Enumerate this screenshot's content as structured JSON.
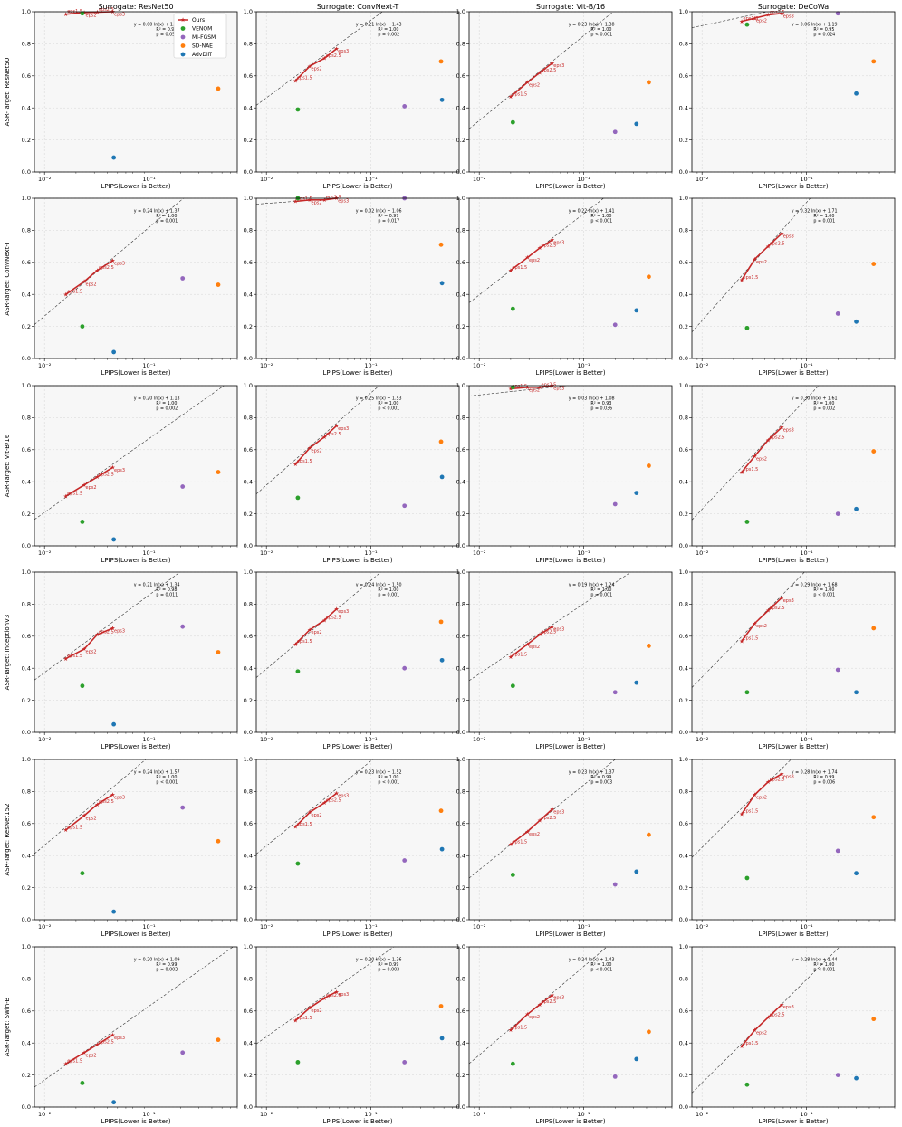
{
  "chart_data": {
    "type": "scatter",
    "xscale": "log",
    "xlabel": "LPIPS(Lower is Better)",
    "ylim": [
      0,
      1
    ],
    "yticks": [
      "0.0",
      "0.2",
      "0.4",
      "0.6",
      "0.8",
      "1.0"
    ],
    "xtick_labels": [
      "10⁻²",
      "10⁻¹"
    ],
    "grid": true,
    "legend": {
      "position": "top-right",
      "entries": [
        "Ours",
        "VENOM",
        "MI-FGSM",
        "SD-NAE",
        "AdvDiff"
      ]
    },
    "colors": {
      "Ours": "#c62828",
      "VENOM": "#2ca02c",
      "MI-FGSM": "#9467bd",
      "SD-NAE": "#ff7f0e",
      "AdvDiff": "#1f77b4",
      "fit": "#333333"
    },
    "eps_labels": [
      "eps1.5",
      "eps2",
      "eps2.5",
      "eps3"
    ],
    "columns": [
      "Surrogate: ResNet50",
      "Surrogate: ConvNext-T",
      "Surrogate: Vit-B/16",
      "Surrogate: DeCoWa"
    ],
    "rows": [
      "ASR-Target: ResNet50",
      "ASR-Target: ConvNext-T",
      "ASR-Target: Vit-B/16",
      "ASR-Target: InceptionV3",
      "ASR-Target: ResNet152",
      "ASR-Target: Swin-B"
    ],
    "xlims": [
      [
        0.008,
        0.7
      ],
      [
        0.008,
        0.7
      ],
      [
        0.008,
        0.7
      ],
      [
        0.008,
        0.7
      ]
    ],
    "ours_x": [
      [
        0.016,
        0.024,
        0.032,
        0.045
      ],
      [
        0.019,
        0.026,
        0.036,
        0.047
      ],
      [
        0.02,
        0.029,
        0.038,
        0.05
      ],
      [
        0.024,
        0.032,
        0.043,
        0.058
      ]
    ],
    "baseline_x": [
      {
        "VENOM": 0.023,
        "MI-FGSM": 0.21,
        "SD-NAE": 0.46,
        "AdvDiff": 0.046
      },
      {
        "VENOM": 0.02,
        "MI-FGSM": 0.21,
        "SD-NAE": 0.47,
        "AdvDiff": 0.48
      },
      {
        "VENOM": 0.021,
        "MI-FGSM": 0.2,
        "SD-NAE": 0.42,
        "AdvDiff": 0.32
      },
      {
        "VENOM": 0.027,
        "MI-FGSM": 0.2,
        "SD-NAE": 0.44,
        "AdvDiff": 0.3
      }
    ],
    "panels": [
      [
        {
          "ours": [
            0.985,
            0.995,
            0.998,
            1.0
          ],
          "baselines": {
            "VENOM": 0.99,
            "MI-FGSM": 0.97,
            "SD-NAE": 0.52,
            "AdvDiff": 0.09
          },
          "fit": [
            "y = 0.00 ln(x) + 1.01",
            "R² = 0.90",
            "p = 0.051"
          ],
          "fit_coef": [
            0.0,
            1.01
          ]
        },
        {
          "ours": [
            0.57,
            0.66,
            0.71,
            0.77
          ],
          "baselines": {
            "VENOM": 0.39,
            "MI-FGSM": 0.41,
            "SD-NAE": 0.69,
            "AdvDiff": 0.45
          },
          "fit": [
            "y = 0.21 ln(x) + 1.43",
            "R² = 1.00",
            "p = 0.002"
          ],
          "fit_coef": [
            0.21,
            1.43
          ]
        },
        {
          "ours": [
            0.47,
            0.56,
            0.62,
            0.68
          ],
          "baselines": {
            "VENOM": 0.31,
            "MI-FGSM": 0.25,
            "SD-NAE": 0.56,
            "AdvDiff": 0.3
          },
          "fit": [
            "y = 0.23 ln(x) + 1.38",
            "R² = 1.00",
            "p < 0.001"
          ],
          "fit_coef": [
            0.23,
            1.38
          ]
        },
        {
          "ours": [
            0.94,
            0.96,
            0.98,
            0.99
          ],
          "baselines": {
            "VENOM": 0.92,
            "MI-FGSM": 0.99,
            "SD-NAE": 0.69,
            "AdvDiff": 0.49
          },
          "fit": [
            "y = 0.06 ln(x) + 1.19",
            "R² = 0.95",
            "p = 0.024"
          ],
          "fit_coef": [
            0.06,
            1.19
          ]
        }
      ],
      [
        {
          "ours": [
            0.4,
            0.48,
            0.55,
            0.61
          ],
          "baselines": {
            "VENOM": 0.2,
            "MI-FGSM": 0.5,
            "SD-NAE": 0.46,
            "AdvDiff": 0.04
          },
          "fit": [
            "y = 0.24 ln(x) + 1.37",
            "R² = 1.00",
            "p = 0.001"
          ],
          "fit_coef": [
            0.24,
            1.37
          ]
        },
        {
          "ours": [
            0.98,
            0.99,
            0.99,
            1.0
          ],
          "baselines": {
            "VENOM": 1.0,
            "MI-FGSM": 1.0,
            "SD-NAE": 0.71,
            "AdvDiff": 0.47
          },
          "fit": [
            "y = 0.02 ln(x) + 1.06",
            "R² = 0.97",
            "p = 0.017"
          ],
          "fit_coef": [
            0.02,
            1.06
          ]
        },
        {
          "ours": [
            0.55,
            0.63,
            0.69,
            0.74
          ],
          "baselines": {
            "VENOM": 0.31,
            "MI-FGSM": 0.21,
            "SD-NAE": 0.51,
            "AdvDiff": 0.3
          },
          "fit": [
            "y = 0.22 ln(x) + 1.41",
            "R² = 1.00",
            "p < 0.001"
          ],
          "fit_coef": [
            0.22,
            1.41
          ]
        },
        {
          "ours": [
            0.49,
            0.62,
            0.7,
            0.78
          ],
          "baselines": {
            "VENOM": 0.19,
            "MI-FGSM": 0.28,
            "SD-NAE": 0.59,
            "AdvDiff": 0.23
          },
          "fit": [
            "y = 0.32 ln(x) + 1.71",
            "R² = 1.00",
            "p = 0.001"
          ],
          "fit_coef": [
            0.32,
            1.71
          ]
        }
      ],
      [
        {
          "ours": [
            0.31,
            0.38,
            0.43,
            0.49
          ],
          "baselines": {
            "VENOM": 0.15,
            "MI-FGSM": 0.37,
            "SD-NAE": 0.46,
            "AdvDiff": 0.04
          },
          "fit": [
            "y = 0.20 ln(x) + 1.13",
            "R² = 1.00",
            "p = 0.002"
          ],
          "fit_coef": [
            0.2,
            1.13
          ]
        },
        {
          "ours": [
            0.51,
            0.61,
            0.68,
            0.75
          ],
          "baselines": {
            "VENOM": 0.3,
            "MI-FGSM": 0.25,
            "SD-NAE": 0.65,
            "AdvDiff": 0.43
          },
          "fit": [
            "y = 0.25 ln(x) + 1.53",
            "R² = 1.00",
            "p < 0.001"
          ],
          "fit_coef": [
            0.25,
            1.53
          ]
        },
        {
          "ours": [
            0.98,
            0.99,
            0.99,
            1.0
          ],
          "baselines": {
            "VENOM": 0.99,
            "MI-FGSM": 0.26,
            "SD-NAE": 0.5,
            "AdvDiff": 0.33
          },
          "fit": [
            "y = 0.03 ln(x) + 1.08",
            "R² = 0.93",
            "p = 0.036"
          ],
          "fit_coef": [
            0.03,
            1.08
          ]
        },
        {
          "ours": [
            0.46,
            0.56,
            0.66,
            0.74
          ],
          "baselines": {
            "VENOM": 0.15,
            "MI-FGSM": 0.2,
            "SD-NAE": 0.59,
            "AdvDiff": 0.23
          },
          "fit": [
            "y = 0.30 ln(x) + 1.61",
            "R² = 1.00",
            "p = 0.002"
          ],
          "fit_coef": [
            0.3,
            1.61
          ]
        }
      ],
      [
        {
          "ours": [
            0.46,
            0.52,
            0.61,
            0.65
          ],
          "baselines": {
            "VENOM": 0.29,
            "MI-FGSM": 0.66,
            "SD-NAE": 0.5,
            "AdvDiff": 0.05
          },
          "fit": [
            "y = 0.21 ln(x) + 1.34",
            "R² = 0.98",
            "p = 0.011"
          ],
          "fit_coef": [
            0.21,
            1.34
          ]
        },
        {
          "ours": [
            0.55,
            0.64,
            0.7,
            0.77
          ],
          "baselines": {
            "VENOM": 0.38,
            "MI-FGSM": 0.4,
            "SD-NAE": 0.69,
            "AdvDiff": 0.45
          },
          "fit": [
            "y = 0.24 ln(x) + 1.50",
            "R² = 1.00",
            "p = 0.001"
          ],
          "fit_coef": [
            0.24,
            1.5
          ]
        },
        {
          "ours": [
            0.47,
            0.55,
            0.61,
            0.66
          ],
          "baselines": {
            "VENOM": 0.29,
            "MI-FGSM": 0.25,
            "SD-NAE": 0.54,
            "AdvDiff": 0.31
          },
          "fit": [
            "y = 0.19 ln(x) + 1.24",
            "R² = 1.00",
            "p = 0.001"
          ],
          "fit_coef": [
            0.19,
            1.24
          ]
        },
        {
          "ours": [
            0.57,
            0.68,
            0.76,
            0.84
          ],
          "baselines": {
            "VENOM": 0.25,
            "MI-FGSM": 0.39,
            "SD-NAE": 0.65,
            "AdvDiff": 0.25
          },
          "fit": [
            "y = 0.29 ln(x) + 1.68",
            "R² = 1.00",
            "p < 0.001"
          ],
          "fit_coef": [
            0.29,
            1.68
          ]
        }
      ],
      [
        {
          "ours": [
            0.56,
            0.65,
            0.72,
            0.78
          ],
          "baselines": {
            "VENOM": 0.29,
            "MI-FGSM": 0.7,
            "SD-NAE": 0.49,
            "AdvDiff": 0.05
          },
          "fit": [
            "y = 0.24 ln(x) + 1.57",
            "R² = 1.00",
            "p < 0.001"
          ],
          "fit_coef": [
            0.24,
            1.57
          ]
        },
        {
          "ours": [
            0.58,
            0.67,
            0.73,
            0.79
          ],
          "baselines": {
            "VENOM": 0.35,
            "MI-FGSM": 0.37,
            "SD-NAE": 0.68,
            "AdvDiff": 0.44
          },
          "fit": [
            "y = 0.23 ln(x) + 1.52",
            "R² = 1.00",
            "p < 0.001"
          ],
          "fit_coef": [
            0.23,
            1.52
          ]
        },
        {
          "ours": [
            0.47,
            0.55,
            0.62,
            0.69
          ],
          "baselines": {
            "VENOM": 0.28,
            "MI-FGSM": 0.22,
            "SD-NAE": 0.53,
            "AdvDiff": 0.3
          },
          "fit": [
            "y = 0.23 ln(x) + 1.37",
            "R² = 0.99",
            "p = 0.003"
          ],
          "fit_coef": [
            0.23,
            1.37
          ]
        },
        {
          "ours": [
            0.66,
            0.78,
            0.86,
            0.91
          ],
          "baselines": {
            "VENOM": 0.26,
            "MI-FGSM": 0.43,
            "SD-NAE": 0.64,
            "AdvDiff": 0.29
          },
          "fit": [
            "y = 0.28 ln(x) + 1.74",
            "R² = 0.99",
            "p = 0.006"
          ],
          "fit_coef": [
            0.28,
            1.74
          ]
        }
      ],
      [
        {
          "ours": [
            0.27,
            0.34,
            0.39,
            0.45
          ],
          "baselines": {
            "VENOM": 0.15,
            "MI-FGSM": 0.34,
            "SD-NAE": 0.42,
            "AdvDiff": 0.03
          },
          "fit": [
            "y = 0.20 ln(x) + 1.09",
            "R² = 0.99",
            "p = 0.003"
          ],
          "fit_coef": [
            0.2,
            1.09
          ]
        },
        {
          "ours": [
            0.54,
            0.62,
            0.68,
            0.72
          ],
          "baselines": {
            "VENOM": 0.28,
            "MI-FGSM": 0.28,
            "SD-NAE": 0.63,
            "AdvDiff": 0.43
          },
          "fit": [
            "y = 0.20 ln(x) + 1.36",
            "R² = 0.99",
            "p = 0.003"
          ],
          "fit_coef": [
            0.2,
            1.36
          ]
        },
        {
          "ours": [
            0.48,
            0.58,
            0.64,
            0.7
          ],
          "baselines": {
            "VENOM": 0.27,
            "MI-FGSM": 0.19,
            "SD-NAE": 0.47,
            "AdvDiff": 0.3
          },
          "fit": [
            "y = 0.24 ln(x) + 1.43",
            "R² = 1.00",
            "p < 0.001"
          ],
          "fit_coef": [
            0.24,
            1.43
          ]
        },
        {
          "ours": [
            0.38,
            0.48,
            0.56,
            0.64
          ],
          "baselines": {
            "VENOM": 0.14,
            "MI-FGSM": 0.2,
            "SD-NAE": 0.55,
            "AdvDiff": 0.18
          },
          "fit": [
            "y = 0.28 ln(x) + 1.44",
            "R² = 1.00",
            "p < 0.001"
          ],
          "fit_coef": [
            0.28,
            1.44
          ]
        }
      ]
    ]
  }
}
